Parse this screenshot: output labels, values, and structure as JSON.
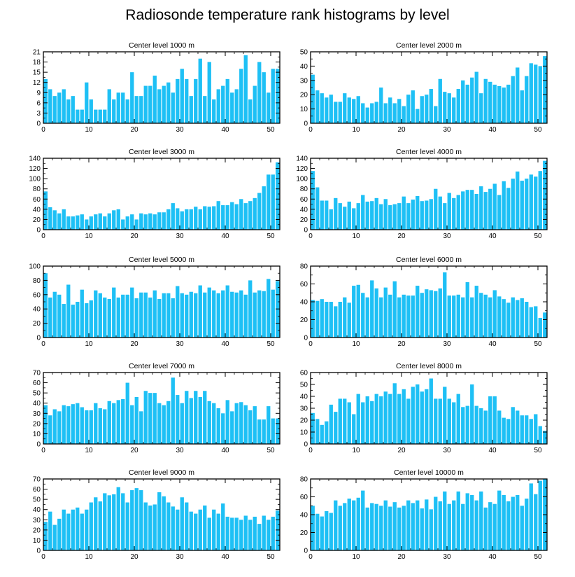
{
  "title": "Radiosonde temperature rank histograms by level",
  "colors": {
    "bar": "#1ec0f5",
    "axis": "#000000"
  },
  "chart_data": [
    {
      "type": "bar",
      "title": "Center level 1000 m",
      "x": [
        0,
        1,
        2,
        3,
        4,
        5,
        6,
        7,
        8,
        9,
        10,
        11,
        12,
        13,
        14,
        15,
        16,
        17,
        18,
        19,
        20,
        21,
        22,
        23,
        24,
        25,
        26,
        27,
        28,
        29,
        30,
        31,
        32,
        33,
        34,
        35,
        36,
        37,
        38,
        39,
        40,
        41,
        42,
        43,
        44,
        45,
        46,
        47,
        48,
        49,
        50,
        51
      ],
      "values": [
        13,
        10,
        8,
        9,
        10,
        7,
        8,
        4,
        4,
        12,
        7,
        4,
        4,
        4,
        10,
        7,
        9,
        9,
        7,
        15,
        8,
        8,
        11,
        11,
        14,
        10,
        11,
        12,
        9,
        13,
        16,
        13,
        8,
        13,
        19,
        8,
        18,
        7,
        10,
        11,
        13,
        9,
        10,
        16,
        20,
        7,
        11,
        18,
        15,
        9,
        16,
        16
      ],
      "xlim": [
        0,
        52
      ],
      "ylim": [
        0,
        21
      ],
      "xticks": [
        0,
        10,
        20,
        30,
        40,
        50
      ],
      "yticks": [
        0,
        3,
        6,
        9,
        12,
        15,
        18,
        21
      ],
      "ytick_labels": [
        "0",
        "3",
        "6",
        "9",
        "12",
        "15",
        "18",
        "21"
      ],
      "xtick_labels": [
        "0",
        "10",
        "20",
        "30",
        "40",
        "50"
      ]
    },
    {
      "type": "bar",
      "title": "Center level 2000 m",
      "x": [
        0,
        1,
        2,
        3,
        4,
        5,
        6,
        7,
        8,
        9,
        10,
        11,
        12,
        13,
        14,
        15,
        16,
        17,
        18,
        19,
        20,
        21,
        22,
        23,
        24,
        25,
        26,
        27,
        28,
        29,
        30,
        31,
        32,
        33,
        34,
        35,
        36,
        37,
        38,
        39,
        40,
        41,
        42,
        43,
        44,
        45,
        46,
        47,
        48,
        49,
        50,
        51
      ],
      "values": [
        34,
        23,
        21,
        18,
        20,
        15,
        15,
        21,
        18,
        17,
        19,
        14,
        11,
        14,
        15,
        25,
        14,
        18,
        14,
        17,
        12,
        20,
        23,
        10,
        19,
        20,
        24,
        12,
        31,
        22,
        21,
        18,
        24,
        30,
        27,
        32,
        36,
        21,
        31,
        29,
        27,
        26,
        25,
        27,
        33,
        39,
        23,
        33,
        42,
        41,
        40,
        47
      ],
      "xlim": [
        0,
        52
      ],
      "ylim": [
        0,
        50
      ],
      "xticks": [
        0,
        10,
        20,
        30,
        40,
        50
      ],
      "yticks": [
        0,
        10,
        20,
        30,
        40,
        50
      ],
      "ytick_labels": [
        "0",
        "10",
        "20",
        "30",
        "40",
        "50"
      ],
      "xtick_labels": [
        "0",
        "10",
        "20",
        "30",
        "40",
        "50"
      ]
    },
    {
      "type": "bar",
      "title": "Center level 3000 m",
      "x": [
        0,
        1,
        2,
        3,
        4,
        5,
        6,
        7,
        8,
        9,
        10,
        11,
        12,
        13,
        14,
        15,
        16,
        17,
        18,
        19,
        20,
        21,
        22,
        23,
        24,
        25,
        26,
        27,
        28,
        29,
        30,
        31,
        32,
        33,
        34,
        35,
        36,
        37,
        38,
        39,
        40,
        41,
        42,
        43,
        44,
        45,
        46,
        47,
        48,
        49,
        50,
        51
      ],
      "values": [
        75,
        44,
        38,
        32,
        40,
        26,
        26,
        28,
        30,
        20,
        26,
        30,
        32,
        26,
        32,
        38,
        40,
        20,
        26,
        30,
        20,
        32,
        30,
        32,
        30,
        34,
        34,
        40,
        52,
        42,
        36,
        40,
        40,
        45,
        40,
        46,
        45,
        46,
        56,
        48,
        48,
        54,
        50,
        60,
        52,
        56,
        62,
        72,
        85,
        108,
        108,
        132
      ],
      "xlim": [
        0,
        52
      ],
      "ylim": [
        0,
        140
      ],
      "xticks": [
        0,
        10,
        20,
        30,
        40,
        50
      ],
      "yticks": [
        0,
        20,
        40,
        60,
        80,
        100,
        120,
        140
      ],
      "ytick_labels": [
        "0",
        "20",
        "40",
        "60",
        "80",
        "100",
        "120",
        "140"
      ],
      "xtick_labels": [
        "0",
        "10",
        "20",
        "30",
        "40",
        "50"
      ]
    },
    {
      "type": "bar",
      "title": "Center level 4000 m",
      "x": [
        0,
        1,
        2,
        3,
        4,
        5,
        6,
        7,
        8,
        9,
        10,
        11,
        12,
        13,
        14,
        15,
        16,
        17,
        18,
        19,
        20,
        21,
        22,
        23,
        24,
        25,
        26,
        27,
        28,
        29,
        30,
        31,
        32,
        33,
        34,
        35,
        36,
        37,
        38,
        39,
        40,
        41,
        42,
        43,
        44,
        45,
        46,
        47,
        48,
        49,
        50,
        51
      ],
      "values": [
        115,
        83,
        57,
        57,
        40,
        62,
        52,
        45,
        55,
        42,
        52,
        68,
        55,
        56,
        62,
        50,
        60,
        48,
        50,
        52,
        65,
        52,
        59,
        66,
        56,
        57,
        60,
        80,
        65,
        52,
        72,
        62,
        68,
        75,
        78,
        78,
        70,
        85,
        74,
        80,
        90,
        68,
        95,
        82,
        100,
        114,
        96,
        100,
        108,
        104,
        115,
        135
      ],
      "xlim": [
        0,
        52
      ],
      "ylim": [
        0,
        140
      ],
      "xticks": [
        0,
        10,
        20,
        30,
        40,
        50
      ],
      "yticks": [
        0,
        20,
        40,
        60,
        80,
        100,
        120,
        140
      ],
      "ytick_labels": [
        "0",
        "20",
        "40",
        "60",
        "80",
        "100",
        "120",
        "140"
      ],
      "xtick_labels": [
        "0",
        "10",
        "20",
        "30",
        "40",
        "50"
      ]
    },
    {
      "type": "bar",
      "title": "Center level 5000 m",
      "x": [
        0,
        1,
        2,
        3,
        4,
        5,
        6,
        7,
        8,
        9,
        10,
        11,
        12,
        13,
        14,
        15,
        16,
        17,
        18,
        19,
        20,
        21,
        22,
        23,
        24,
        25,
        26,
        27,
        28,
        29,
        30,
        31,
        32,
        33,
        34,
        35,
        36,
        37,
        38,
        39,
        40,
        41,
        42,
        43,
        44,
        45,
        46,
        47,
        48,
        49,
        50,
        51
      ],
      "values": [
        90,
        56,
        64,
        60,
        47,
        74,
        46,
        50,
        67,
        48,
        52,
        66,
        62,
        56,
        54,
        70,
        56,
        60,
        60,
        70,
        55,
        63,
        63,
        56,
        66,
        54,
        62,
        62,
        55,
        72,
        62,
        60,
        64,
        62,
        73,
        63,
        70,
        66,
        62,
        66,
        73,
        64,
        63,
        66,
        60,
        80,
        63,
        66,
        65,
        82,
        67,
        79
      ],
      "xlim": [
        0,
        52
      ],
      "ylim": [
        0,
        100
      ],
      "xticks": [
        0,
        10,
        20,
        30,
        40,
        50
      ],
      "yticks": [
        0,
        20,
        40,
        60,
        80,
        100
      ],
      "ytick_labels": [
        "0",
        "20",
        "40",
        "60",
        "80",
        "100"
      ],
      "xtick_labels": [
        "0",
        "10",
        "20",
        "30",
        "40",
        "50"
      ]
    },
    {
      "type": "bar",
      "title": "Center level 6000 m",
      "x": [
        0,
        1,
        2,
        3,
        4,
        5,
        6,
        7,
        8,
        9,
        10,
        11,
        12,
        13,
        14,
        15,
        16,
        17,
        18,
        19,
        20,
        21,
        22,
        23,
        24,
        25,
        26,
        27,
        28,
        29,
        30,
        31,
        32,
        33,
        34,
        35,
        36,
        37,
        38,
        39,
        40,
        41,
        42,
        43,
        44,
        45,
        46,
        47,
        48,
        49,
        50,
        51
      ],
      "values": [
        42,
        41,
        43,
        40,
        40,
        35,
        40,
        45,
        39,
        58,
        59,
        50,
        45,
        64,
        55,
        45,
        56,
        48,
        63,
        45,
        48,
        47,
        47,
        58,
        50,
        54,
        53,
        52,
        55,
        73,
        47,
        47,
        48,
        45,
        62,
        45,
        58,
        50,
        48,
        45,
        53,
        46,
        43,
        39,
        45,
        42,
        44,
        40,
        34,
        35,
        22,
        28
      ],
      "xlim": [
        0,
        52
      ],
      "ylim": [
        0,
        80
      ],
      "xticks": [
        0,
        10,
        20,
        30,
        40,
        50
      ],
      "yticks": [
        0,
        20,
        40,
        60,
        80
      ],
      "ytick_labels": [
        "0",
        "20",
        "40",
        "60",
        "80"
      ],
      "xtick_labels": [
        "0",
        "10",
        "20",
        "30",
        "40",
        "50"
      ]
    },
    {
      "type": "bar",
      "title": "Center level 7000 m",
      "x": [
        0,
        1,
        2,
        3,
        4,
        5,
        6,
        7,
        8,
        9,
        10,
        11,
        12,
        13,
        14,
        15,
        16,
        17,
        18,
        19,
        20,
        21,
        22,
        23,
        24,
        25,
        26,
        27,
        28,
        29,
        30,
        31,
        32,
        33,
        34,
        35,
        36,
        37,
        38,
        39,
        40,
        41,
        42,
        43,
        44,
        45,
        46,
        47,
        48,
        49,
        50,
        51
      ],
      "values": [
        38,
        28,
        34,
        32,
        38,
        37,
        39,
        40,
        36,
        33,
        33,
        40,
        35,
        34,
        42,
        40,
        43,
        44,
        60,
        38,
        46,
        32,
        52,
        50,
        50,
        40,
        38,
        42,
        65,
        48,
        40,
        52,
        45,
        52,
        46,
        52,
        42,
        40,
        35,
        30,
        43,
        32,
        40,
        41,
        38,
        33,
        37,
        24,
        24,
        37,
        25,
        25
      ],
      "xlim": [
        0,
        52
      ],
      "ylim": [
        0,
        70
      ],
      "xticks": [
        0,
        10,
        20,
        30,
        40,
        50
      ],
      "yticks": [
        0,
        10,
        20,
        30,
        40,
        50,
        60,
        70
      ],
      "ytick_labels": [
        "0",
        "10",
        "20",
        "30",
        "40",
        "50",
        "60",
        "70"
      ],
      "xtick_labels": [
        "0",
        "10",
        "20",
        "30",
        "40",
        "50"
      ]
    },
    {
      "type": "bar",
      "title": "Center level 8000 m",
      "x": [
        0,
        1,
        2,
        3,
        4,
        5,
        6,
        7,
        8,
        9,
        10,
        11,
        12,
        13,
        14,
        15,
        16,
        17,
        18,
        19,
        20,
        21,
        22,
        23,
        24,
        25,
        26,
        27,
        28,
        29,
        30,
        31,
        32,
        33,
        34,
        35,
        36,
        37,
        38,
        39,
        40,
        41,
        42,
        43,
        44,
        45,
        46,
        47,
        48,
        49,
        50,
        51
      ],
      "values": [
        26,
        21,
        16,
        19,
        33,
        27,
        38,
        38,
        35,
        25,
        42,
        35,
        40,
        36,
        42,
        40,
        44,
        42,
        51,
        42,
        46,
        38,
        48,
        50,
        44,
        46,
        55,
        38,
        38,
        48,
        38,
        35,
        42,
        31,
        32,
        50,
        32,
        30,
        28,
        40,
        40,
        28,
        22,
        21,
        31,
        28,
        24,
        24,
        21,
        25,
        15,
        11
      ],
      "xlim": [
        0,
        52
      ],
      "ylim": [
        0,
        60
      ],
      "xticks": [
        0,
        10,
        20,
        30,
        40,
        50
      ],
      "yticks": [
        0,
        10,
        20,
        30,
        40,
        50,
        60
      ],
      "ytick_labels": [
        "0",
        "10",
        "20",
        "30",
        "40",
        "50",
        "60"
      ],
      "xtick_labels": [
        "0",
        "10",
        "20",
        "30",
        "40",
        "50"
      ]
    },
    {
      "type": "bar",
      "title": "Center level 9000 m",
      "x": [
        0,
        1,
        2,
        3,
        4,
        5,
        6,
        7,
        8,
        9,
        10,
        11,
        12,
        13,
        14,
        15,
        16,
        17,
        18,
        19,
        20,
        21,
        22,
        23,
        24,
        25,
        26,
        27,
        28,
        29,
        30,
        31,
        32,
        33,
        34,
        35,
        36,
        37,
        38,
        39,
        40,
        41,
        42,
        43,
        44,
        45,
        46,
        47,
        48,
        49,
        50,
        51
      ],
      "values": [
        28,
        38,
        25,
        31,
        40,
        36,
        40,
        42,
        36,
        40,
        47,
        52,
        48,
        56,
        54,
        55,
        62,
        56,
        47,
        59,
        61,
        59,
        47,
        44,
        45,
        57,
        53,
        47,
        43,
        40,
        52,
        47,
        38,
        36,
        40,
        44,
        32,
        40,
        36,
        46,
        33,
        32,
        32,
        30,
        34,
        30,
        33,
        26,
        34,
        30,
        33,
        39
      ],
      "xlim": [
        0,
        52
      ],
      "ylim": [
        0,
        70
      ],
      "xticks": [
        0,
        10,
        20,
        30,
        40,
        50
      ],
      "yticks": [
        0,
        10,
        20,
        30,
        40,
        50,
        60,
        70
      ],
      "ytick_labels": [
        "0",
        "10",
        "20",
        "30",
        "40",
        "50",
        "60",
        "70"
      ],
      "xtick_labels": [
        "0",
        "10",
        "20",
        "30",
        "40",
        "50"
      ]
    },
    {
      "type": "bar",
      "title": "Center level 10000 m",
      "x": [
        0,
        1,
        2,
        3,
        4,
        5,
        6,
        7,
        8,
        9,
        10,
        11,
        12,
        13,
        14,
        15,
        16,
        17,
        18,
        19,
        20,
        21,
        22,
        23,
        24,
        25,
        26,
        27,
        28,
        29,
        30,
        31,
        32,
        33,
        34,
        35,
        36,
        37,
        38,
        39,
        40,
        41,
        42,
        43,
        44,
        45,
        46,
        47,
        48,
        49,
        50,
        51
      ],
      "values": [
        50,
        41,
        38,
        44,
        42,
        56,
        50,
        53,
        58,
        56,
        59,
        67,
        48,
        53,
        52,
        50,
        56,
        49,
        54,
        48,
        50,
        56,
        53,
        56,
        47,
        57,
        46,
        60,
        55,
        66,
        52,
        56,
        66,
        52,
        64,
        62,
        56,
        66,
        48,
        54,
        52,
        67,
        62,
        55,
        60,
        62,
        50,
        58,
        75,
        63,
        78,
        80
      ],
      "xlim": [
        0,
        52
      ],
      "ylim": [
        0,
        80
      ],
      "xticks": [
        0,
        10,
        20,
        30,
        40,
        50
      ],
      "yticks": [
        0,
        20,
        40,
        60,
        80
      ],
      "ytick_labels": [
        "0",
        "20",
        "40",
        "60",
        "80"
      ],
      "xtick_labels": [
        "0",
        "10",
        "20",
        "30",
        "40",
        "50"
      ]
    }
  ]
}
